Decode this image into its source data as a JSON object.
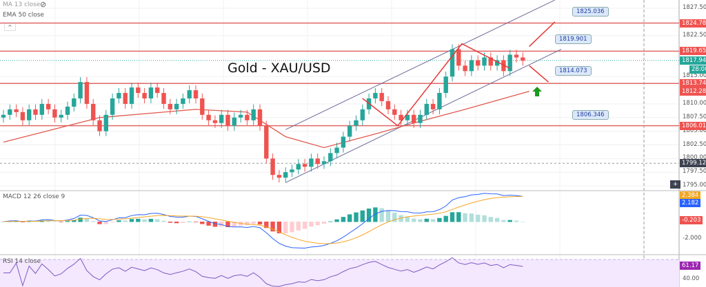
{
  "legend": {
    "ma": "MA 13 close",
    "ema": "EMA 50 close",
    "macd": "MACD 12 26 close 9",
    "rsi": "RSI 14 close",
    "collapse_icon": "chevron-up-icon",
    "hide_icon": "eye-slash-icon"
  },
  "title": "Gold - XAU/USD",
  "colors": {
    "up": "#26a69a",
    "down": "#ef5350",
    "level": "#e06666",
    "channel": "#6b6b9a",
    "ema": "#e05a4f",
    "macd": "#2962ff",
    "signal": "#f5a623",
    "rsi": "#7e57c2"
  },
  "price_axis": {
    "ticks": [
      "1827.500",
      "1822.500",
      "1815.000",
      "1810.000",
      "1807.500",
      "1805.000",
      "1802.500",
      "1800.000",
      "1797.500",
      "1795.000"
    ],
    "tick_values": [
      1827.5,
      1822.5,
      1815,
      1810,
      1807.5,
      1805,
      1802.5,
      1800,
      1797.5,
      1795
    ]
  },
  "price_tags": [
    {
      "text": "1824.787",
      "value": 1824.787,
      "color": "#ef5350"
    },
    {
      "text": "1819.652",
      "value": 1819.652,
      "color": "#ef5350"
    },
    {
      "text": "1817.942",
      "value": 1817.942,
      "color": "#26a69a"
    },
    {
      "text": "1813.740",
      "value": 1813.74,
      "color": "#ef5350"
    },
    {
      "text": "1812.289",
      "value": 1812.289,
      "color": "#ef5350"
    },
    {
      "text": "1806.012",
      "value": 1806.012,
      "color": "#ef5350"
    },
    {
      "text": "1799.127",
      "value": 1799.127,
      "color": "#3d4350"
    }
  ],
  "countdown": "28:00",
  "levels": [
    1824.787,
    1819.652,
    1813.74,
    1806.012
  ],
  "crosshair_price": 1799.127,
  "last_price": 1817.942,
  "callouts": [
    {
      "text": "1825.036",
      "value": 1825.036
    },
    {
      "text": "1819.901",
      "value": 1819.901
    },
    {
      "text": "1814.073",
      "value": 1814.073
    },
    {
      "text": "1806.346",
      "value": 1806.346
    }
  ],
  "closes": [
    1808,
    1809,
    1808.5,
    1807,
    1809,
    1808,
    1810,
    1809,
    1807.5,
    1808,
    1809.5,
    1811,
    1814,
    1810,
    1807,
    1805,
    1808,
    1811,
    1812,
    1810,
    1813,
    1812,
    1811,
    1813,
    1812,
    1810,
    1809,
    1810,
    1811,
    1812.5,
    1811,
    1808,
    1807,
    1806.5,
    1808,
    1806,
    1807.5,
    1808,
    1807,
    1809,
    1806,
    1800,
    1797,
    1796.5,
    1797.5,
    1798,
    1799,
    1798.5,
    1800,
    1799,
    1799.5,
    1801,
    1802,
    1804,
    1806,
    1807,
    1809,
    1811,
    1812,
    1810.5,
    1809,
    1808,
    1807,
    1808,
    1806.5,
    1808,
    1810,
    1809,
    1812,
    1815,
    1820,
    1817,
    1816,
    1818,
    1817,
    1818.5,
    1817,
    1818,
    1816,
    1819,
    1818.5,
    1817.9
  ],
  "ema_50": [
    [
      0,
      1803
    ],
    [
      15,
      1807.5
    ],
    [
      30,
      1809
    ],
    [
      38,
      1808.5
    ],
    [
      44,
      1804
    ],
    [
      50,
      1802
    ],
    [
      58,
      1804.5
    ],
    [
      64,
      1806.5
    ],
    [
      72,
      1809
    ],
    [
      82,
      1812.3
    ]
  ],
  "channel": [
    [
      [
        44,
        1805.3
      ],
      [
        86,
        1829
      ]
    ],
    [
      [
        44,
        1795.6
      ],
      [
        87,
        1820
      ]
    ]
  ],
  "zigzag": [
    [
      56,
      1811
    ],
    [
      61.5,
      1806
    ],
    [
      71.5,
      1821
    ],
    [
      79,
      1816.5
    ]
  ],
  "projections": [
    [
      [
        82,
        1820.5
      ],
      [
        86,
        1825
      ]
    ],
    [
      [
        82,
        1817
      ],
      [
        85,
        1814
      ]
    ]
  ],
  "macd_axis": {
    "ticks": [
      "-2.000"
    ],
    "tags": [
      {
        "text": "2.384",
        "color": "#f5a623"
      },
      {
        "text": "2.182",
        "color": "#2962ff"
      },
      {
        "text": "-0.203",
        "color": "#ef5350"
      }
    ]
  },
  "rsi_axis": {
    "ticks": [
      "40.00"
    ],
    "tag": {
      "text": "61.17",
      "color": "#9c27b0"
    }
  }
}
